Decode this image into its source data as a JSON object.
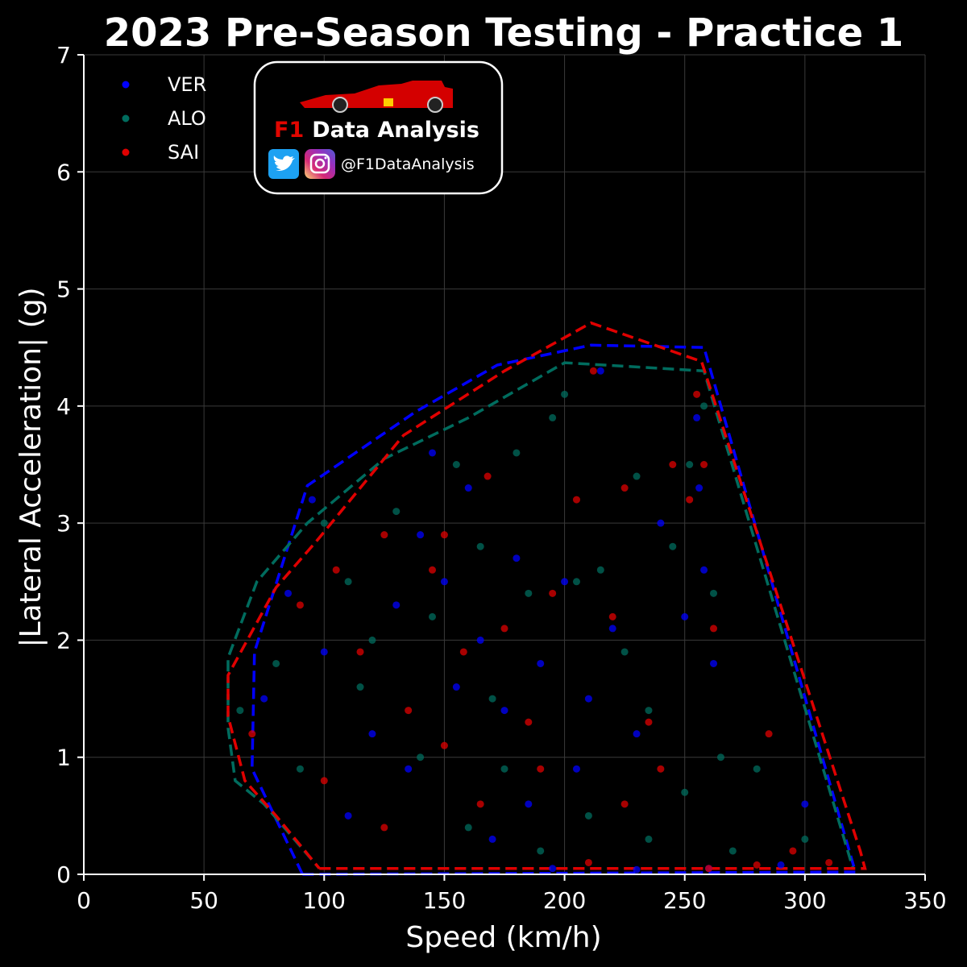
{
  "chart_data": {
    "type": "scatter",
    "title": "2023 Pre-Season Testing - Practice 1",
    "xlabel": "Speed (km/h)",
    "ylabel": "|Lateral Acceleration| (g)",
    "xlim": [
      0,
      350
    ],
    "ylim": [
      0,
      7
    ],
    "xticks": [
      0,
      50,
      100,
      150,
      200,
      250,
      300,
      350
    ],
    "yticks": [
      0,
      1,
      2,
      3,
      4,
      5,
      6,
      7
    ],
    "grid": true,
    "legend_position": "top-left",
    "series": [
      {
        "name": "VER",
        "color": "#0000ff",
        "hull": [
          [
            91,
            0
          ],
          [
            321,
            0.02
          ],
          [
            258,
            4.5
          ],
          [
            211,
            4.52
          ],
          [
            172,
            4.35
          ],
          [
            138,
            3.95
          ],
          [
            93,
            3.32
          ],
          [
            71,
            1.9
          ],
          [
            70,
            0.9
          ],
          [
            91,
            0
          ]
        ],
        "points": [
          [
            95,
            3.2
          ],
          [
            130,
            2.3
          ],
          [
            140,
            2.9
          ],
          [
            150,
            2.5
          ],
          [
            155,
            1.6
          ],
          [
            160,
            3.3
          ],
          [
            165,
            2.0
          ],
          [
            175,
            1.4
          ],
          [
            180,
            2.7
          ],
          [
            190,
            1.8
          ],
          [
            200,
            2.5
          ],
          [
            205,
            0.9
          ],
          [
            210,
            1.5
          ],
          [
            215,
            4.3
          ],
          [
            220,
            2.1
          ],
          [
            230,
            1.2
          ],
          [
            240,
            3.0
          ],
          [
            250,
            2.2
          ],
          [
            255,
            3.9
          ],
          [
            256,
            3.3
          ],
          [
            258,
            2.6
          ],
          [
            262,
            1.8
          ],
          [
            120,
            1.2
          ],
          [
            110,
            0.5
          ],
          [
            135,
            0.9
          ],
          [
            170,
            0.3
          ],
          [
            185,
            0.6
          ],
          [
            195,
            0.05
          ],
          [
            230,
            0.04
          ],
          [
            260,
            0.05
          ],
          [
            290,
            0.08
          ],
          [
            300,
            0.6
          ],
          [
            85,
            2.4
          ],
          [
            75,
            1.5
          ],
          [
            100,
            1.9
          ],
          [
            145,
            3.6
          ]
        ]
      },
      {
        "name": "ALO",
        "color": "#006c5e",
        "hull": [
          [
            98,
            0.05
          ],
          [
            320,
            0.05
          ],
          [
            258,
            4.3
          ],
          [
            200,
            4.37
          ],
          [
            160,
            3.9
          ],
          [
            125,
            3.55
          ],
          [
            93,
            3.0
          ],
          [
            72,
            2.5
          ],
          [
            60,
            1.85
          ],
          [
            60,
            1.25
          ],
          [
            63,
            0.8
          ],
          [
            75,
            0.6
          ],
          [
            98,
            0.05
          ]
        ],
        "points": [
          [
            100,
            3.0
          ],
          [
            110,
            2.5
          ],
          [
            120,
            2.0
          ],
          [
            130,
            3.1
          ],
          [
            145,
            2.2
          ],
          [
            155,
            3.5
          ],
          [
            165,
            2.8
          ],
          [
            170,
            1.5
          ],
          [
            180,
            3.6
          ],
          [
            185,
            2.4
          ],
          [
            195,
            3.9
          ],
          [
            200,
            4.1
          ],
          [
            205,
            2.5
          ],
          [
            215,
            2.6
          ],
          [
            225,
            1.9
          ],
          [
            235,
            1.4
          ],
          [
            245,
            2.8
          ],
          [
            252,
            3.5
          ],
          [
            258,
            4.0
          ],
          [
            262,
            2.4
          ],
          [
            265,
            1.0
          ],
          [
            280,
            0.9
          ],
          [
            90,
            0.9
          ],
          [
            115,
            1.6
          ],
          [
            140,
            1.0
          ],
          [
            160,
            0.4
          ],
          [
            175,
            0.9
          ],
          [
            190,
            0.2
          ],
          [
            210,
            0.5
          ],
          [
            235,
            0.3
          ],
          [
            250,
            0.7
          ],
          [
            270,
            0.2
          ],
          [
            300,
            0.3
          ],
          [
            65,
            1.4
          ],
          [
            80,
            1.8
          ],
          [
            230,
            3.4
          ]
        ]
      },
      {
        "name": "SAI",
        "color": "#e00000",
        "hull": [
          [
            98,
            0.05
          ],
          [
            325,
            0.05
          ],
          [
            323,
            0.2
          ],
          [
            257,
            4.38
          ],
          [
            211,
            4.71
          ],
          [
            175,
            4.3
          ],
          [
            133,
            3.75
          ],
          [
            97,
            2.85
          ],
          [
            80,
            2.45
          ],
          [
            60,
            1.7
          ],
          [
            60,
            1.35
          ],
          [
            67,
            0.8
          ],
          [
            80,
            0.5
          ],
          [
            98,
            0.05
          ]
        ],
        "points": [
          [
            105,
            2.6
          ],
          [
            115,
            1.9
          ],
          [
            125,
            2.9
          ],
          [
            135,
            1.4
          ],
          [
            145,
            2.6
          ],
          [
            150,
            2.9
          ],
          [
            158,
            1.9
          ],
          [
            168,
            3.4
          ],
          [
            175,
            2.1
          ],
          [
            185,
            1.3
          ],
          [
            195,
            2.4
          ],
          [
            205,
            3.2
          ],
          [
            212,
            4.3
          ],
          [
            220,
            2.2
          ],
          [
            225,
            3.3
          ],
          [
            235,
            1.3
          ],
          [
            245,
            3.5
          ],
          [
            252,
            3.2
          ],
          [
            255,
            4.1
          ],
          [
            258,
            3.5
          ],
          [
            262,
            2.1
          ],
          [
            285,
            1.2
          ],
          [
            100,
            0.8
          ],
          [
            125,
            0.4
          ],
          [
            150,
            1.1
          ],
          [
            165,
            0.6
          ],
          [
            190,
            0.9
          ],
          [
            210,
            0.1
          ],
          [
            225,
            0.6
          ],
          [
            240,
            0.9
          ],
          [
            260,
            0.05
          ],
          [
            280,
            0.08
          ],
          [
            295,
            0.2
          ],
          [
            310,
            0.1
          ],
          [
            70,
            1.2
          ],
          [
            90,
            2.3
          ]
        ]
      }
    ]
  },
  "branding": {
    "f1_text": "F1",
    "name_text": "Data Analysis",
    "handle": "@F1DataAnalysis",
    "twitter_color": "#1da1f2",
    "instagram_colors": [
      "#feda75",
      "#d62976",
      "#962fbf",
      "#4f5bd5"
    ],
    "car_color": "#d40000",
    "icons": [
      "f1-car-icon",
      "twitter-icon",
      "instagram-icon"
    ]
  }
}
